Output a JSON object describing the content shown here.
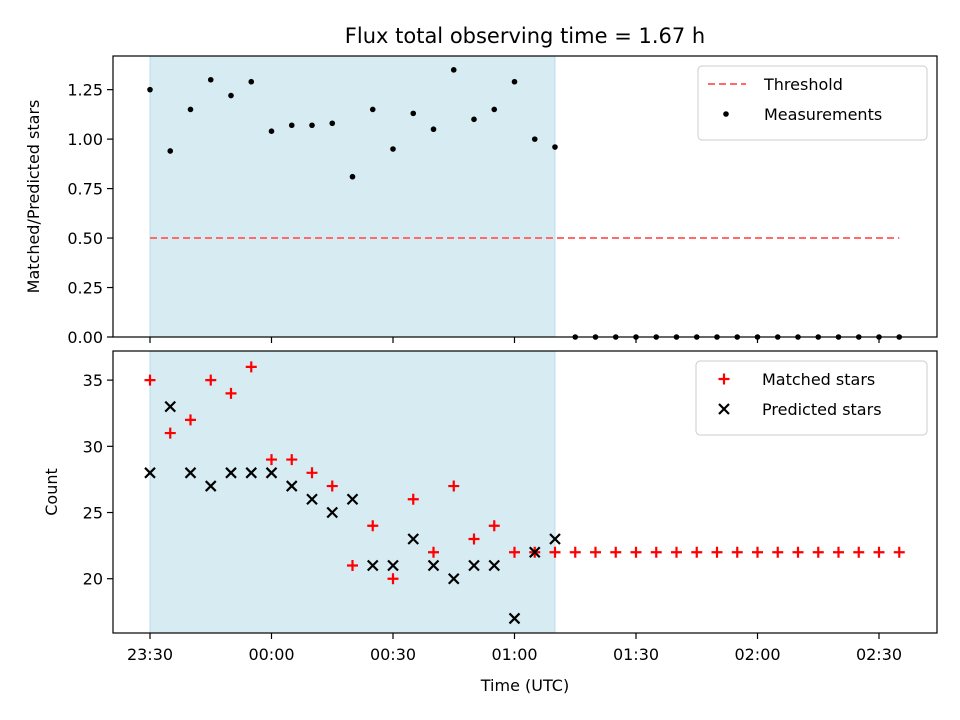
{
  "chart_data": {
    "title": "Flux total observing time = 1.67 h",
    "xlabel": "Time (UTC)",
    "x_ticks": [
      "23:30",
      "00:00",
      "00:30",
      "01:00",
      "01:30",
      "02:00",
      "02:30"
    ],
    "shaded_region": {
      "x_start": "23:30",
      "x_end": "01:10",
      "color": "#add8e6"
    },
    "panels": [
      {
        "type": "scatter",
        "ylabel": "Matched/Predicted stars",
        "ylim": [
          0,
          1.42
        ],
        "y_ticks": [
          "0.00",
          "0.25",
          "0.50",
          "0.75",
          "1.00",
          "1.25"
        ],
        "legend_position": "top-right",
        "threshold": {
          "name": "Threshold",
          "value": 0.5,
          "x_start": "23:30",
          "x_end": "02:35",
          "color": "#ff6b6b"
        },
        "series": [
          {
            "name": "Measurements",
            "marker": "dot",
            "color": "#000000",
            "x": [
              "23:30",
              "23:35",
              "23:40",
              "23:45",
              "23:50",
              "23:55",
              "00:00",
              "00:05",
              "00:10",
              "00:15",
              "00:20",
              "00:25",
              "00:30",
              "00:35",
              "00:40",
              "00:45",
              "00:50",
              "00:55",
              "01:00",
              "01:05",
              "01:10",
              "01:15",
              "01:20",
              "01:25",
              "01:30",
              "01:35",
              "01:40",
              "01:45",
              "01:50",
              "01:55",
              "02:00",
              "02:05",
              "02:10",
              "02:15",
              "02:20",
              "02:25",
              "02:30",
              "02:35"
            ],
            "y": [
              1.25,
              0.94,
              1.15,
              1.3,
              1.22,
              1.29,
              1.04,
              1.07,
              1.07,
              1.08,
              0.81,
              1.15,
              0.95,
              1.13,
              1.05,
              1.35,
              1.1,
              1.15,
              1.29,
              1.0,
              0.96,
              0,
              0,
              0,
              0,
              0,
              0,
              0,
              0,
              0,
              0,
              0,
              0,
              0,
              0,
              0,
              0,
              0
            ]
          }
        ]
      },
      {
        "type": "scatter",
        "ylabel": "Count",
        "ylim": [
          15.9,
          37.2
        ],
        "y_ticks": [
          "20",
          "25",
          "30",
          "35"
        ],
        "legend_position": "top-right",
        "series": [
          {
            "name": "Matched stars",
            "marker": "plus",
            "color": "#ff0000",
            "x": [
              "23:30",
              "23:35",
              "23:40",
              "23:45",
              "23:50",
              "23:55",
              "00:00",
              "00:05",
              "00:10",
              "00:15",
              "00:20",
              "00:25",
              "00:30",
              "00:35",
              "00:40",
              "00:45",
              "00:50",
              "00:55",
              "01:00",
              "01:05",
              "01:10",
              "01:15",
              "01:20",
              "01:25",
              "01:30",
              "01:35",
              "01:40",
              "01:45",
              "01:50",
              "01:55",
              "02:00",
              "02:05",
              "02:10",
              "02:15",
              "02:20",
              "02:25",
              "02:30",
              "02:35"
            ],
            "y": [
              35,
              31,
              32,
              35,
              34,
              36,
              29,
              29,
              28,
              27,
              21,
              24,
              20,
              26,
              22,
              27,
              23,
              24,
              22,
              22,
              22,
              22,
              22,
              22,
              22,
              22,
              22,
              22,
              22,
              22,
              22,
              22,
              22,
              22,
              22,
              22,
              22,
              22
            ]
          },
          {
            "name": "Predicted stars",
            "marker": "x",
            "color": "#000000",
            "x": [
              "23:30",
              "23:35",
              "23:40",
              "23:45",
              "23:50",
              "23:55",
              "00:00",
              "00:05",
              "00:10",
              "00:15",
              "00:20",
              "00:25",
              "00:30",
              "00:35",
              "00:40",
              "00:45",
              "00:50",
              "00:55",
              "01:00",
              "01:05",
              "01:10"
            ],
            "y": [
              28,
              33,
              28,
              27,
              28,
              28,
              28,
              27,
              26,
              25,
              26,
              21,
              21,
              23,
              21,
              20,
              21,
              21,
              17,
              22,
              23
            ]
          }
        ]
      }
    ]
  }
}
